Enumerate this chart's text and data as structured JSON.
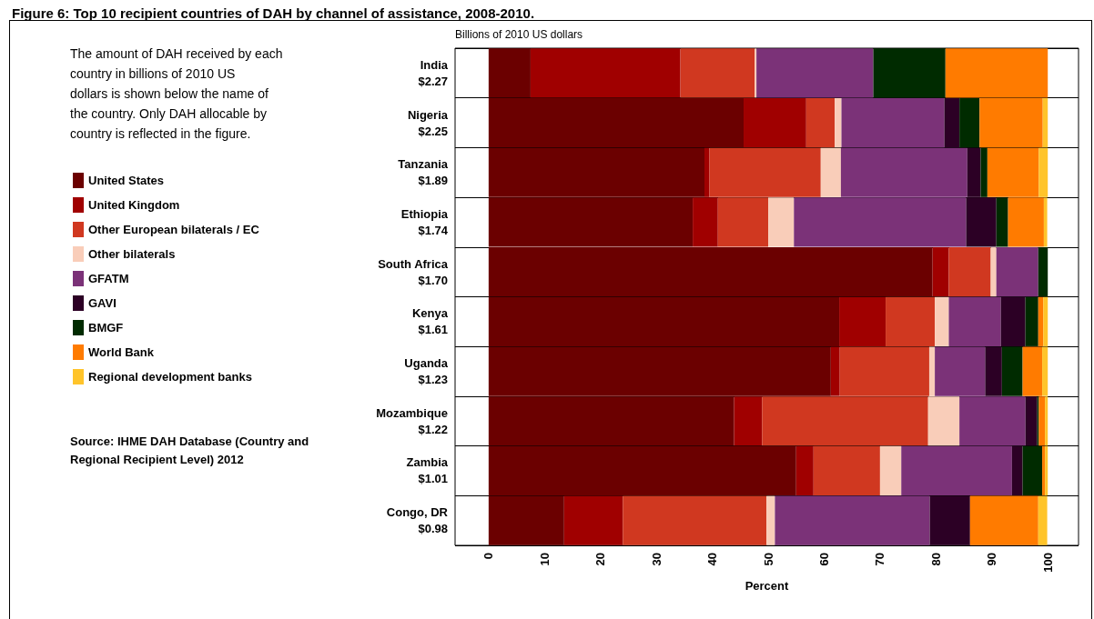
{
  "chart_data": {
    "type": "bar",
    "orientation": "horizontal",
    "stacked": true,
    "title": "Figure 6: Top 10 recipient countries of DAH by channel of assistance, 2008-2010.",
    "xlabel": "Percent",
    "annotations": [
      "The amount of DAH received by each country in billions of 2010 US dollars is shown below the name of the country. Only DAH allocable by country is reflected in the figure.",
      "Source: IHME DAH Database (Country and Regional Recipient Level) 2012",
      "Billions of 2010 US dollars"
    ],
    "categories": [
      "India\n$2.27",
      "Nigeria\n$2.25",
      "Tanzania\n$1.89",
      "Ethiopia\n$1.74",
      "South Africa\n$1.70",
      "Kenya\n$1.61",
      "Uganda\n$1.23",
      "Mozambique\n$1.22",
      "Zambia\n$1.01",
      "Congo, DR\n$0.98"
    ],
    "series": [
      {
        "name": "United States",
        "color": "#6b0000",
        "values": [
          7.5,
          45.6,
          38.6,
          36.5,
          79.4,
          62.7,
          61.2,
          43.9,
          55.0,
          13.5
        ]
      },
      {
        "name": "United Kingdom",
        "color": "#a00000",
        "values": [
          26.8,
          11.2,
          0.9,
          4.5,
          2.9,
          8.3,
          1.6,
          5.0,
          3.1,
          10.5
        ]
      },
      {
        "name": "Other European bilaterals / EC",
        "color": "#d03820",
        "values": [
          13.3,
          5.1,
          19.9,
          9.0,
          7.5,
          8.8,
          16.0,
          29.7,
          11.9,
          25.7
        ]
      },
      {
        "name": "Other bilaterals",
        "color": "#f9cdb9",
        "values": [
          0.3,
          1.2,
          3.6,
          4.6,
          1.0,
          2.5,
          1.0,
          5.6,
          3.8,
          1.5
        ]
      },
      {
        "name": "GFATM",
        "color": "#7b3278",
        "values": [
          20.9,
          18.4,
          22.6,
          30.8,
          7.5,
          9.3,
          9.0,
          11.8,
          19.8,
          27.7
        ]
      },
      {
        "name": "GAVI",
        "color": "#2c0025",
        "values": [
          0,
          2.7,
          2.4,
          5.4,
          0,
          4.4,
          3.0,
          2.1,
          1.9,
          7.2
        ]
      },
      {
        "name": "BMGF",
        "color": "#002b00",
        "values": [
          12.9,
          3.6,
          1.2,
          2.1,
          1.7,
          2.3,
          3.7,
          0.3,
          3.5,
          null
        ]
      },
      {
        "name": "World Bank",
        "color": "#ff7b00",
        "values": [
          18.3,
          11.3,
          9.2,
          6.4,
          0,
          0.9,
          3.5,
          1.1,
          0.5,
          12.2
        ]
      },
      {
        "name": "Regional development banks",
        "color": "#ffc42a",
        "values": [
          0,
          0.9,
          1.6,
          0.6,
          0,
          0.8,
          1.0,
          0.5,
          0.5,
          1.6
        ]
      }
    ],
    "xlim": [
      -6,
      105.5
    ],
    "xticks": [
      0,
      10,
      20,
      30,
      40,
      50,
      60,
      70,
      80,
      90,
      100
    ],
    "grid": "y",
    "legend": "left"
  }
}
